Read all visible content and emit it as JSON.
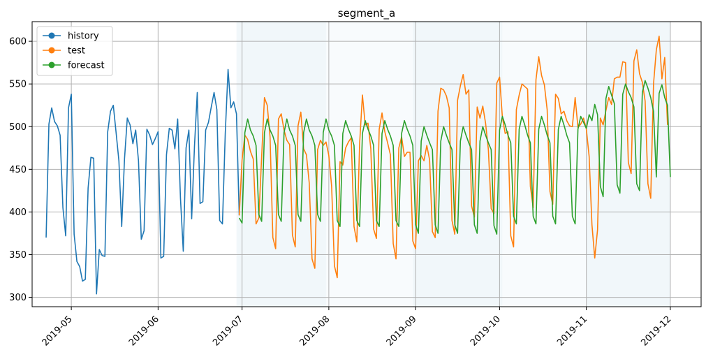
{
  "chart_data": {
    "type": "line",
    "title": "segment_a",
    "xlabel": "",
    "ylabel": "",
    "x_axis_type": "date",
    "xlim": [
      "2019-04-17",
      "2019-12-12"
    ],
    "ylim": [
      289,
      623
    ],
    "x_ticks": [
      "2019-05-01",
      "2019-06-01",
      "2019-07-01",
      "2019-08-01",
      "2019-09-01",
      "2019-10-01",
      "2019-11-01",
      "2019-12-01"
    ],
    "x_tick_labels": [
      "2019-05",
      "2019-06",
      "2019-07",
      "2019-08",
      "2019-09",
      "2019-10",
      "2019-11",
      "2019-12"
    ],
    "y_ticks": [
      300,
      350,
      400,
      450,
      500,
      550,
      600
    ],
    "y_tick_labels": [
      "300",
      "350",
      "400",
      "450",
      "500",
      "550",
      "600"
    ],
    "grid": true,
    "legend_position": "upper-left",
    "shaded_periods": [
      {
        "start": "2019-06-29",
        "end": "2019-07-31",
        "alpha": 0.1
      },
      {
        "start": "2019-07-31",
        "end": "2019-08-31",
        "alpha": 0.05
      },
      {
        "start": "2019-08-31",
        "end": "2019-10-02",
        "alpha": 0.1
      },
      {
        "start": "2019-10-02",
        "end": "2019-11-01",
        "alpha": 0.05
      },
      {
        "start": "2019-11-01",
        "end": "2019-12-01",
        "alpha": 0.1
      }
    ],
    "series": [
      {
        "name": "history",
        "color": "#1f77b4",
        "start": "2019-04-22",
        "values": [
          370,
          503,
          522,
          506,
          501,
          490,
          405,
          372,
          522,
          538,
          374,
          342,
          336,
          319,
          321,
          428,
          464,
          463,
          304,
          356,
          349,
          348,
          494,
          518,
          525,
          493,
          460,
          383,
          462,
          510,
          502,
          480,
          496,
          460,
          368,
          378,
          497,
          490,
          479,
          486,
          494,
          346,
          348,
          467,
          498,
          496,
          474,
          509,
          416,
          354,
          475,
          496,
          392,
          477,
          540,
          410,
          412,
          496,
          505,
          523,
          540,
          520,
          390,
          386,
          492,
          567,
          522,
          529,
          515,
          396
        ]
      },
      {
        "name": "test",
        "color": "#ff7f0e",
        "start": "2019-06-30",
        "values": [
          396,
          461,
          490,
          485,
          471,
          462,
          386,
          393,
          465,
          534,
          525,
          488,
          370,
          357,
          509,
          515,
          496,
          484,
          479,
          373,
          359,
          501,
          517,
          474,
          467,
          434,
          345,
          334,
          473,
          484,
          478,
          482,
          466,
          430,
          337,
          323,
          459,
          455,
          475,
          482,
          487,
          383,
          365,
          480,
          537,
          502,
          504,
          474,
          380,
          369,
          497,
          516,
          494,
          481,
          467,
          363,
          345,
          475,
          488,
          465,
          470,
          470,
          366,
          357,
          460,
          466,
          460,
          478,
          461,
          377,
          370,
          518,
          545,
          543,
          536,
          522,
          390,
          374,
          531,
          548,
          561,
          538,
          543,
          407,
          394,
          523,
          510,
          524,
          504,
          473,
          404,
          398,
          551,
          558,
          511,
          492,
          494,
          372,
          359,
          520,
          537,
          550,
          547,
          544,
          430,
          405,
          555,
          582,
          560,
          549,
          520,
          424,
          409,
          538,
          533,
          515,
          518,
          507,
          501,
          500,
          534,
          499,
          503,
          510,
          497,
          465,
          385,
          346,
          379,
          510,
          502,
          519,
          534,
          526,
          556,
          558,
          558,
          576,
          575,
          458,
          445,
          577,
          590,
          562,
          552,
          530,
          433,
          416,
          550,
          590,
          606,
          556,
          581,
          502
        ]
      },
      {
        "name": "forecast",
        "color": "#2ca02c",
        "start": "2019-06-30",
        "values": [
          393,
          387,
          493,
          509,
          496,
          489,
          478,
          397,
          389,
          493,
          509,
          496,
          489,
          478,
          397,
          389,
          493,
          509,
          496,
          489,
          478,
          397,
          389,
          493,
          509,
          496,
          489,
          478,
          397,
          389,
          493,
          509,
          496,
          489,
          478,
          390,
          383,
          492,
          507,
          497,
          489,
          478,
          390,
          383,
          492,
          507,
          497,
          489,
          478,
          390,
          383,
          492,
          507,
          497,
          489,
          478,
          390,
          383,
          492,
          507,
          497,
          489,
          478,
          385,
          375,
          483,
          500,
          490,
          481,
          473,
          385,
          375,
          483,
          500,
          490,
          481,
          473,
          385,
          375,
          483,
          500,
          490,
          481,
          473,
          385,
          375,
          483,
          500,
          490,
          481,
          473,
          384,
          374,
          496,
          512,
          502,
          490,
          481,
          395,
          386,
          497,
          512,
          502,
          490,
          481,
          395,
          386,
          497,
          512,
          502,
          490,
          481,
          395,
          386,
          497,
          512,
          502,
          490,
          481,
          395,
          386,
          497,
          512,
          505,
          498,
          514,
          507,
          526,
          514,
          430,
          418,
          533,
          547,
          537,
          527,
          432,
          422,
          538,
          550,
          541,
          534,
          523,
          433,
          425,
          540,
          554,
          545,
          534,
          518,
          441,
          539,
          549,
          534,
          525,
          441
        ]
      }
    ]
  }
}
